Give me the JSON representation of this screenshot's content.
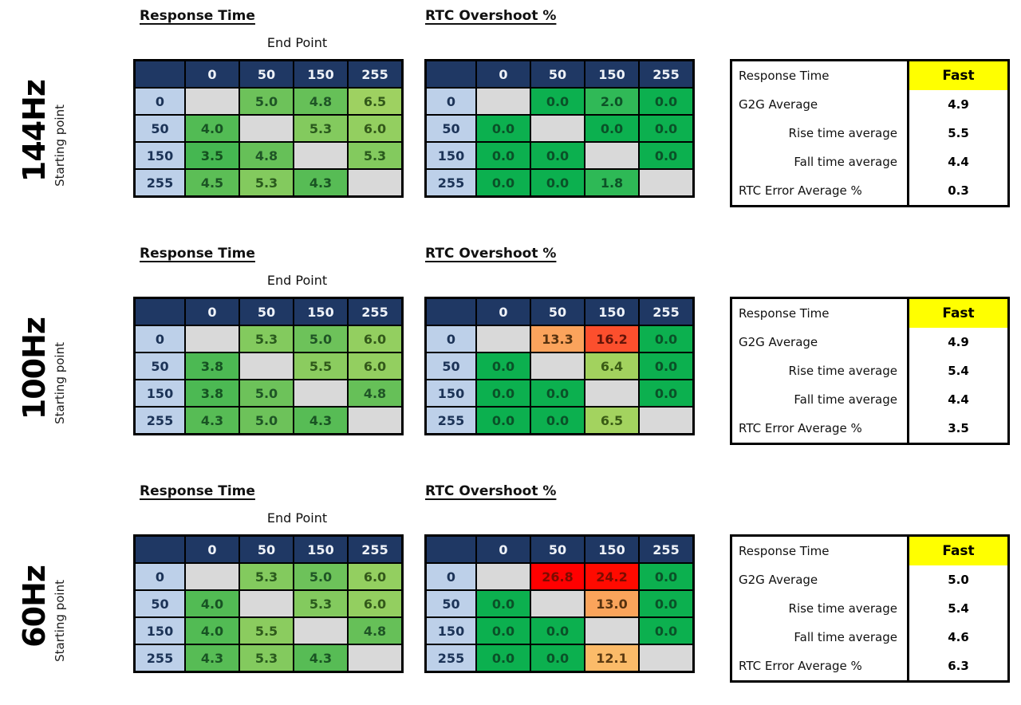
{
  "colors": {
    "header_bg": "#1f3864",
    "header_text": "#eef2f8",
    "row_label_bg": "#bdd0e9",
    "row_label_text": "#1c3357",
    "diagonal_bg": "#d9d9d9",
    "fast_highlight_bg": "#ffff00",
    "good_green": "#0cb04f",
    "warn_orange": "#fba35c",
    "bad_red": "#ff0000"
  },
  "matrix_headers": [
    "0",
    "50",
    "150",
    "255"
  ],
  "sections": [
    {
      "refresh_rate": "144Hz",
      "rt_title": "Response Time",
      "rtc_title": "RTC Overshoot %",
      "x_axis_label": "End Point",
      "y_axis_label": "Starting point",
      "response_time": [
        [
          null,
          [
            "5.0",
            "#6dc25a",
            "#1f5526"
          ],
          [
            "4.8",
            "#66c058",
            "#1f5526"
          ],
          [
            "6.5",
            "#9ed161",
            "#33591a"
          ]
        ],
        [
          [
            "4.0",
            "#52bb54",
            "#175323"
          ],
          null,
          [
            "5.3",
            "#83ca5e",
            "#2a5a1d"
          ],
          [
            "6.0",
            "#93cf60",
            "#33591a"
          ]
        ],
        [
          [
            "3.5",
            "#45b751",
            "#14521f"
          ],
          [
            "4.8",
            "#66c058",
            "#1f5526"
          ],
          null,
          [
            "5.3",
            "#83ca5e",
            "#2a5a1d"
          ]
        ],
        [
          [
            "4.5",
            "#5cbe56",
            "#1b5424"
          ],
          [
            "5.3",
            "#83ca5e",
            "#2a5a1d"
          ],
          [
            "4.3",
            "#57bc55",
            "#195423"
          ],
          null
        ]
      ],
      "rtc_overshoot": [
        [
          null,
          [
            "0.0",
            "#0cb04f",
            "#0a5128"
          ],
          [
            "2.0",
            "#30b957",
            "#0d5227"
          ],
          [
            "0.0",
            "#0cb04f",
            "#0a5128"
          ]
        ],
        [
          [
            "0.0",
            "#0cb04f",
            "#0a5128"
          ],
          null,
          [
            "0.0",
            "#0cb04f",
            "#0a5128"
          ],
          [
            "0.0",
            "#0cb04f",
            "#0a5128"
          ]
        ],
        [
          [
            "0.0",
            "#0cb04f",
            "#0a5128"
          ],
          [
            "0.0",
            "#0cb04f",
            "#0a5128"
          ],
          null,
          [
            "0.0",
            "#0cb04f",
            "#0a5128"
          ]
        ],
        [
          [
            "0.0",
            "#0cb04f",
            "#0a5128"
          ],
          [
            "0.0",
            "#0cb04f",
            "#0a5128"
          ],
          [
            "1.8",
            "#2eb956",
            "#0d5227"
          ],
          null
        ]
      ],
      "summary": {
        "rows": [
          {
            "label": "Response Time",
            "value": "Fast",
            "highlight": true
          },
          {
            "label": "G2G Average",
            "value": "4.9"
          },
          {
            "label": "Rise time average",
            "value": "5.5",
            "indent": true
          },
          {
            "label": "Fall time average",
            "value": "4.4",
            "indent": true
          },
          {
            "label": "RTC Error Average %",
            "value": "0.3"
          }
        ]
      }
    },
    {
      "refresh_rate": "100Hz",
      "rt_title": "Response Time",
      "rtc_title": "RTC Overshoot %",
      "x_axis_label": "End Point",
      "y_axis_label": "Starting point",
      "response_time": [
        [
          null,
          [
            "5.3",
            "#83ca5e",
            "#2a5a1d"
          ],
          [
            "5.0",
            "#6dc25a",
            "#1f5526"
          ],
          [
            "6.0",
            "#93cf60",
            "#33591a"
          ]
        ],
        [
          [
            "3.8",
            "#4cb953",
            "#155222"
          ],
          null,
          [
            "5.5",
            "#8bcc5f",
            "#2f5a1b"
          ],
          [
            "6.0",
            "#93cf60",
            "#33591a"
          ]
        ],
        [
          [
            "3.8",
            "#4cb953",
            "#155222"
          ],
          [
            "5.0",
            "#6dc25a",
            "#1f5526"
          ],
          null,
          [
            "4.8",
            "#66c058",
            "#1f5526"
          ]
        ],
        [
          [
            "4.3",
            "#57bc55",
            "#195423"
          ],
          [
            "5.0",
            "#6dc25a",
            "#1f5526"
          ],
          [
            "4.3",
            "#57bc55",
            "#195423"
          ],
          null
        ]
      ],
      "rtc_overshoot": [
        [
          null,
          [
            "13.3",
            "#fba35c",
            "#57320f"
          ],
          [
            "16.2",
            "#fc4f2d",
            "#641408"
          ],
          [
            "0.0",
            "#0cb04f",
            "#0a5128"
          ]
        ],
        [
          [
            "0.0",
            "#0cb04f",
            "#0a5128"
          ],
          null,
          [
            "6.4",
            "#a2d25e",
            "#3a5c15"
          ],
          [
            "0.0",
            "#0cb04f",
            "#0a5128"
          ]
        ],
        [
          [
            "0.0",
            "#0cb04f",
            "#0a5128"
          ],
          [
            "0.0",
            "#0cb04f",
            "#0a5128"
          ],
          null,
          [
            "0.0",
            "#0cb04f",
            "#0a5128"
          ]
        ],
        [
          [
            "0.0",
            "#0cb04f",
            "#0a5128"
          ],
          [
            "0.0",
            "#0cb04f",
            "#0a5128"
          ],
          [
            "6.5",
            "#a3d35f",
            "#3a5c15"
          ],
          null
        ]
      ],
      "summary": {
        "rows": [
          {
            "label": "Response Time",
            "value": "Fast",
            "highlight": true
          },
          {
            "label": "G2G Average",
            "value": "4.9"
          },
          {
            "label": "Rise time average",
            "value": "5.4",
            "indent": true
          },
          {
            "label": "Fall time average",
            "value": "4.4",
            "indent": true
          },
          {
            "label": "RTC Error Average %",
            "value": "3.5"
          }
        ]
      }
    },
    {
      "refresh_rate": "60Hz",
      "rt_title": "Response Time",
      "rtc_title": "RTC Overshoot %",
      "x_axis_label": "End Point",
      "y_axis_label": "Starting point",
      "response_time": [
        [
          null,
          [
            "5.3",
            "#83ca5e",
            "#2a5a1d"
          ],
          [
            "5.0",
            "#6dc25a",
            "#1f5526"
          ],
          [
            "6.0",
            "#93cf60",
            "#33591a"
          ]
        ],
        [
          [
            "4.0",
            "#52bb54",
            "#175323"
          ],
          null,
          [
            "5.3",
            "#83ca5e",
            "#2a5a1d"
          ],
          [
            "6.0",
            "#93cf60",
            "#33591a"
          ]
        ],
        [
          [
            "4.0",
            "#52bb54",
            "#175323"
          ],
          [
            "5.5",
            "#8bcc5f",
            "#2f5a1b"
          ],
          null,
          [
            "4.8",
            "#66c058",
            "#1f5526"
          ]
        ],
        [
          [
            "4.3",
            "#57bc55",
            "#195423"
          ],
          [
            "5.3",
            "#83ca5e",
            "#2a5a1d"
          ],
          [
            "4.3",
            "#57bc55",
            "#195423"
          ],
          null
        ]
      ],
      "rtc_overshoot": [
        [
          null,
          [
            "26.8",
            "#ff0000",
            "#7b0c00"
          ],
          [
            "24.2",
            "#ff0a00",
            "#7b0c00"
          ],
          [
            "0.0",
            "#0cb04f",
            "#0a5128"
          ]
        ],
        [
          [
            "0.0",
            "#0cb04f",
            "#0a5128"
          ],
          null,
          [
            "13.0",
            "#faa45b",
            "#57320f"
          ],
          [
            "0.0",
            "#0cb04f",
            "#0a5128"
          ]
        ],
        [
          [
            "0.0",
            "#0cb04f",
            "#0a5128"
          ],
          [
            "0.0",
            "#0cb04f",
            "#0a5128"
          ],
          null,
          [
            "0.0",
            "#0cb04f",
            "#0a5128"
          ]
        ],
        [
          [
            "0.0",
            "#0cb04f",
            "#0a5128"
          ],
          [
            "0.0",
            "#0cb04f",
            "#0a5128"
          ],
          [
            "12.1",
            "#fbbb69",
            "#5c3a11"
          ],
          null
        ]
      ],
      "summary": {
        "rows": [
          {
            "label": "Response Time",
            "value": "Fast",
            "highlight": true
          },
          {
            "label": "G2G Average",
            "value": "5.0"
          },
          {
            "label": "Rise time average",
            "value": "5.4",
            "indent": true
          },
          {
            "label": "Fall time average",
            "value": "4.6",
            "indent": true
          },
          {
            "label": "RTC Error Average %",
            "value": "6.3"
          }
        ]
      }
    }
  ],
  "chart_data": [
    {
      "type": "heatmap",
      "refresh_rate": "144Hz",
      "title": "Response Time / RTC Overshoot % @ 144Hz",
      "xlabel": "End Point",
      "ylabel": "Starting point",
      "x_categories": [
        0,
        50,
        150,
        255
      ],
      "y_categories": [
        0,
        50,
        150,
        255
      ],
      "response_time_ms": [
        [
          null,
          5.0,
          4.8,
          6.5
        ],
        [
          4.0,
          null,
          5.3,
          6.0
        ],
        [
          3.5,
          4.8,
          null,
          5.3
        ],
        [
          4.5,
          5.3,
          4.3,
          null
        ]
      ],
      "rtc_overshoot_pct": [
        [
          null,
          0.0,
          2.0,
          0.0
        ],
        [
          0.0,
          null,
          0.0,
          0.0
        ],
        [
          0.0,
          0.0,
          null,
          0.0
        ],
        [
          0.0,
          0.0,
          1.8,
          null
        ]
      ],
      "summary": {
        "response_time_rating": "Fast",
        "g2g_average": 4.9,
        "rise_time_average": 5.5,
        "fall_time_average": 4.4,
        "rtc_error_average_pct": 0.3
      }
    },
    {
      "type": "heatmap",
      "refresh_rate": "100Hz",
      "title": "Response Time / RTC Overshoot % @ 100Hz",
      "xlabel": "End Point",
      "ylabel": "Starting point",
      "x_categories": [
        0,
        50,
        150,
        255
      ],
      "y_categories": [
        0,
        50,
        150,
        255
      ],
      "response_time_ms": [
        [
          null,
          5.3,
          5.0,
          6.0
        ],
        [
          3.8,
          null,
          5.5,
          6.0
        ],
        [
          3.8,
          5.0,
          null,
          4.8
        ],
        [
          4.3,
          5.0,
          4.3,
          null
        ]
      ],
      "rtc_overshoot_pct": [
        [
          null,
          13.3,
          16.2,
          0.0
        ],
        [
          0.0,
          null,
          6.4,
          0.0
        ],
        [
          0.0,
          0.0,
          null,
          0.0
        ],
        [
          0.0,
          0.0,
          6.5,
          null
        ]
      ],
      "summary": {
        "response_time_rating": "Fast",
        "g2g_average": 4.9,
        "rise_time_average": 5.4,
        "fall_time_average": 4.4,
        "rtc_error_average_pct": 3.5
      }
    },
    {
      "type": "heatmap",
      "refresh_rate": "60Hz",
      "title": "Response Time / RTC Overshoot % @ 60Hz",
      "xlabel": "End Point",
      "ylabel": "Starting point",
      "x_categories": [
        0,
        50,
        150,
        255
      ],
      "y_categories": [
        0,
        50,
        150,
        255
      ],
      "response_time_ms": [
        [
          null,
          5.3,
          5.0,
          6.0
        ],
        [
          4.0,
          null,
          5.3,
          6.0
        ],
        [
          4.0,
          5.5,
          null,
          4.8
        ],
        [
          4.3,
          5.3,
          4.3,
          null
        ]
      ],
      "rtc_overshoot_pct": [
        [
          null,
          26.8,
          24.2,
          0.0
        ],
        [
          0.0,
          null,
          13.0,
          0.0
        ],
        [
          0.0,
          0.0,
          null,
          0.0
        ],
        [
          0.0,
          0.0,
          12.1,
          null
        ]
      ],
      "summary": {
        "response_time_rating": "Fast",
        "g2g_average": 5.0,
        "rise_time_average": 5.4,
        "fall_time_average": 4.6,
        "rtc_error_average_pct": 6.3
      }
    }
  ]
}
